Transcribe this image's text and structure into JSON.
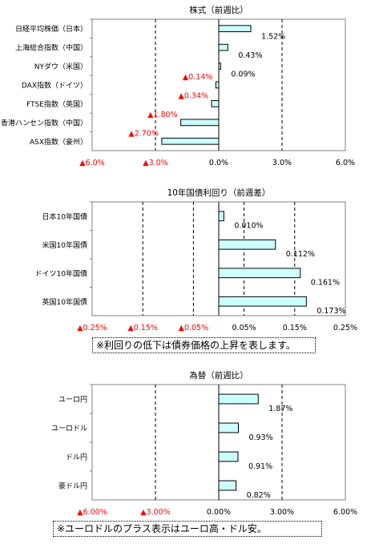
{
  "colors": {
    "bar_fill": "#ccffff",
    "bar_stroke": "#000000",
    "negative_text": "#ff0000",
    "gridline": "#000000"
  },
  "chart_data": [
    {
      "type": "bar",
      "orientation": "horizontal",
      "title": "株式（前週比）",
      "categories": [
        "日経平均株価（日本）",
        "上海総合指数（中国）",
        "NYダウ（米国）",
        "DAX指数（ドイツ）",
        "FTSE指数（英国）",
        "香港ハンセン指数（中国）",
        "ASX指数（豪州）"
      ],
      "values": [
        1.52,
        0.43,
        0.09,
        -0.14,
        -0.34,
        -1.8,
        -2.7
      ],
      "value_labels": [
        "1.52%",
        "0.43%",
        "0.09%",
        "▲0.14%",
        "▲0.34%",
        "▲1.80%",
        "▲2.70%"
      ],
      "xlim": [
        -6,
        6
      ],
      "ticks": [
        -6,
        -3,
        0,
        3,
        6
      ],
      "tick_labels": [
        "▲6.0%",
        "▲3.0%",
        "0.0%",
        "3.0%",
        "6.0%"
      ],
      "grid": "vertical dashed"
    },
    {
      "type": "bar",
      "orientation": "horizontal",
      "title": "10年国債利回り（前週差）",
      "categories": [
        "日本10年国債",
        "米国10年国債",
        "ドイツ10年国債",
        "英国10年国債"
      ],
      "values": [
        0.01,
        0.112,
        0.161,
        0.173
      ],
      "value_labels": [
        "0.010%",
        "0.112%",
        "0.161%",
        "0.173%"
      ],
      "xlim": [
        -0.25,
        0.25
      ],
      "ticks": [
        -0.25,
        -0.15,
        -0.05,
        0.05,
        0.15,
        0.25
      ],
      "tick_labels": [
        "▲0.25%",
        "▲0.15%",
        "▲0.05%",
        "0.05%",
        "0.15%",
        "0.25%"
      ],
      "grid": "vertical dashed",
      "note": "※利回りの低下は債券価格の上昇を表します。"
    },
    {
      "type": "bar",
      "orientation": "horizontal",
      "title": "為替（前週比）",
      "categories": [
        "ユーロ円",
        "ユーロドル",
        "ドル円",
        "豪ドル円"
      ],
      "values": [
        1.87,
        0.93,
        0.91,
        0.82
      ],
      "value_labels": [
        "1.87%",
        "0.93%",
        "0.91%",
        "0.82%"
      ],
      "xlim": [
        -6,
        6
      ],
      "ticks": [
        -6,
        -3,
        0,
        3,
        6
      ],
      "tick_labels": [
        "▲6.00%",
        "▲3.00%",
        "0.00%",
        "3.00%",
        "6.00%"
      ],
      "grid": "vertical dashed",
      "note": "※ユーロドルのプラス表示はユーロ高・ドル安。"
    }
  ]
}
